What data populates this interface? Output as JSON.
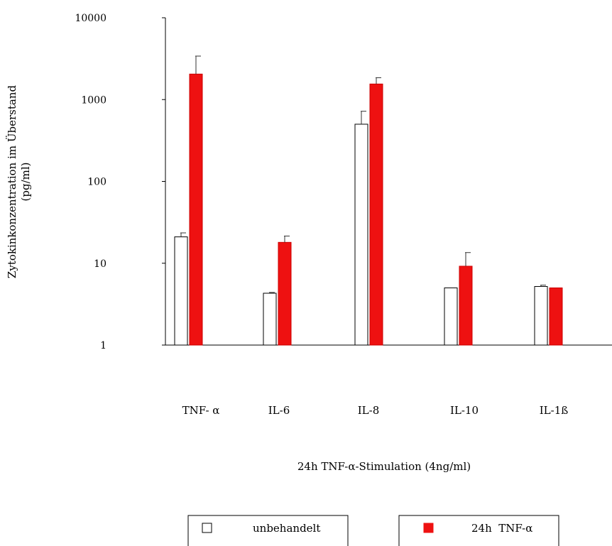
{
  "chart_data": {
    "type": "bar",
    "ylabel_line1": "Zytokinkonzentration im Überstand",
    "ylabel_line2": "(pg/ml)",
    "xlabel": "24h TNF-α-Stimulation (4ng/ml)",
    "yscale": "log",
    "ylim": [
      1,
      10000
    ],
    "yticks": [
      1,
      10,
      100,
      1000,
      10000
    ],
    "ytick_labels": [
      "1",
      "10",
      "100",
      "1000",
      "10000"
    ],
    "categories": [
      "TNF- α",
      "IL-6",
      "IL-8",
      "IL-10",
      "IL-1ß"
    ],
    "series": [
      {
        "name": "unbehandelt",
        "color": "#ffffff",
        "values": [
          21,
          4.3,
          500,
          5,
          5.2
        ],
        "errors": [
          23.5,
          4.4,
          720,
          null,
          5.4
        ]
      },
      {
        "name": "24h  TNF-α",
        "color": "#ee1111",
        "values": [
          2050,
          18,
          1550,
          9.2,
          5
        ],
        "errors": [
          3400,
          21.5,
          1850,
          13.5,
          null
        ]
      }
    ],
    "legend_position": "bottom"
  }
}
